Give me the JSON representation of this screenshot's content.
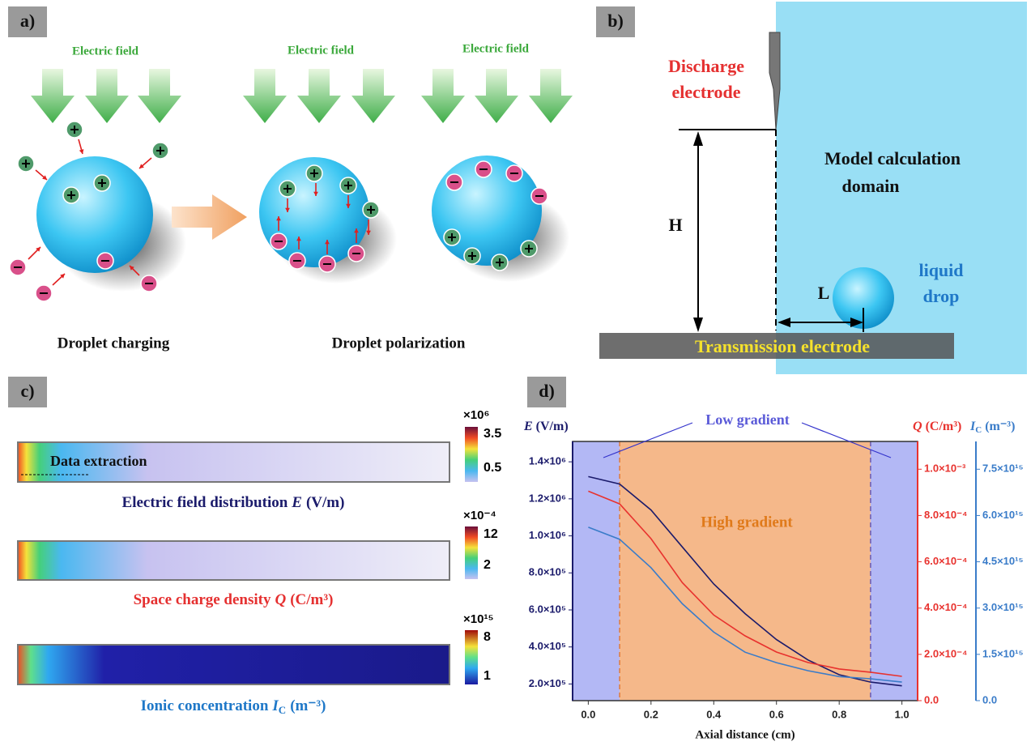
{
  "panel_a": {
    "label": "a)",
    "field_labels": [
      "Electric field",
      "Electric field",
      "Electric field"
    ],
    "caption_left": "Droplet charging",
    "caption_right": "Droplet polarization"
  },
  "panel_b": {
    "label": "b)",
    "electrode_line1": "Discharge",
    "electrode_line2": "electrode",
    "domain_line1": "Model calculation",
    "domain_line2": "domain",
    "height": "H",
    "distance": "L",
    "drop_line1": "liquid",
    "drop_line2": "drop",
    "ground": "Transmission electrode"
  },
  "panel_c": {
    "label": "c)",
    "extraction": "Data extraction",
    "maps": [
      {
        "scale": "×10⁶",
        "max": 3.5,
        "min": 0.5,
        "text": "Electric field distribution",
        "symbol": "E",
        "subscript": "",
        "unit": "(V/m)"
      },
      {
        "scale": "×10⁻⁴",
        "max": 12,
        "min": 2,
        "text": "Space charge density",
        "symbol": "Q",
        "subscript": "",
        "unit": "(C/m³)"
      },
      {
        "scale": "×10¹⁵",
        "max": 8,
        "min": 1,
        "text": "Ionic concentration",
        "symbol": "I",
        "subscript": "C",
        "unit": "(m⁻³)"
      }
    ]
  },
  "panel_d_label": "d)",
  "chart_data": {
    "type": "line",
    "xlabel": "Axial distance (cm)",
    "ylabel": {
      "symbol": "E",
      "unit": "(V/m)"
    },
    "y2label": {
      "symbol": "Q",
      "unit": "(C/m³)"
    },
    "y3label": {
      "symbol": "I",
      "subscript": "C",
      "unit": "(m⁻³)"
    },
    "annotations": [
      "Low gradient",
      "High gradient"
    ],
    "boundaries": [
      0.1,
      0.9
    ],
    "xlim": [
      -0.05,
      1.05
    ],
    "xticks": [
      {
        "value": 0,
        "label": "0.0"
      },
      0.2,
      0.4,
      0.6,
      0.8,
      {
        "value": 1,
        "label": "1.0"
      }
    ],
    "ylim": [
      110000,
      1510000
    ],
    "yticks": [
      {
        "value": 200000,
        "label": "2.0×10⁵"
      },
      {
        "value": 400000,
        "label": "4.0×10⁵"
      },
      {
        "value": 600000,
        "label": "6.0×10⁵"
      },
      {
        "value": 800000,
        "label": "8.0×10⁵"
      },
      {
        "value": 1000000,
        "label": "1.0×10⁶"
      },
      {
        "value": 1200000,
        "label": "1.2×10⁶"
      },
      {
        "value": 1400000,
        "label": "1.4×10⁶"
      }
    ],
    "y2lim": [
      0,
      0.00112
    ],
    "y2ticks": [
      {
        "value": 0,
        "label": "0.0"
      },
      {
        "value": 0.0002,
        "label": "2.0×10⁻⁴"
      },
      {
        "value": 0.0004,
        "label": "4.0×10⁻⁴"
      },
      {
        "value": 0.0006,
        "label": "6.0×10⁻⁴"
      },
      {
        "value": 0.0008,
        "label": "8.0×10⁻⁴"
      },
      {
        "value": 0.001,
        "label": "1.0×10⁻³"
      }
    ],
    "y3lim": [
      0,
      8400000000000000.0
    ],
    "y3ticks": [
      {
        "value": 0,
        "label": "0.0"
      },
      {
        "value": 1500000000000000.0,
        "label": "1.5×10¹⁵"
      },
      {
        "value": 3000000000000000.0,
        "label": "3.0×10¹⁵"
      },
      {
        "value": 4500000000000000.0,
        "label": "4.5×10¹⁵"
      },
      {
        "value": 6000000000000000.0,
        "label": "6.0×10¹⁵"
      },
      {
        "value": 7500000000000000.0,
        "label": "7.5×10¹⁵"
      }
    ],
    "x": [
      0,
      0.1,
      0.2,
      0.3,
      0.4,
      0.5,
      0.6,
      0.7,
      0.8,
      0.9,
      1.0
    ],
    "series": [
      {
        "axis": "y",
        "color": "#1b1b6b",
        "values": [
          1320000,
          1280000,
          1140000,
          940000,
          740000,
          580000,
          440000,
          330000,
          250000,
          210000,
          190000
        ]
      },
      {
        "axis": "y2",
        "color": "#e8322e",
        "values": [
          0.000905,
          0.00085,
          0.0007,
          0.00051,
          0.00037,
          0.00028,
          0.00021,
          0.000165,
          0.000137,
          0.000123,
          0.000105
        ]
      },
      {
        "axis": "y3",
        "color": "#3a7cc9",
        "values": [
          5620000000000000.0,
          5230000000000000.0,
          4310000000000000.0,
          3140000000000000.0,
          2220000000000000.0,
          1570000000000000.0,
          1230000000000000.0,
          970000000000000.0,
          780000000000000.0,
          710000000000000.0,
          600000000000000.0
        ]
      }
    ]
  }
}
